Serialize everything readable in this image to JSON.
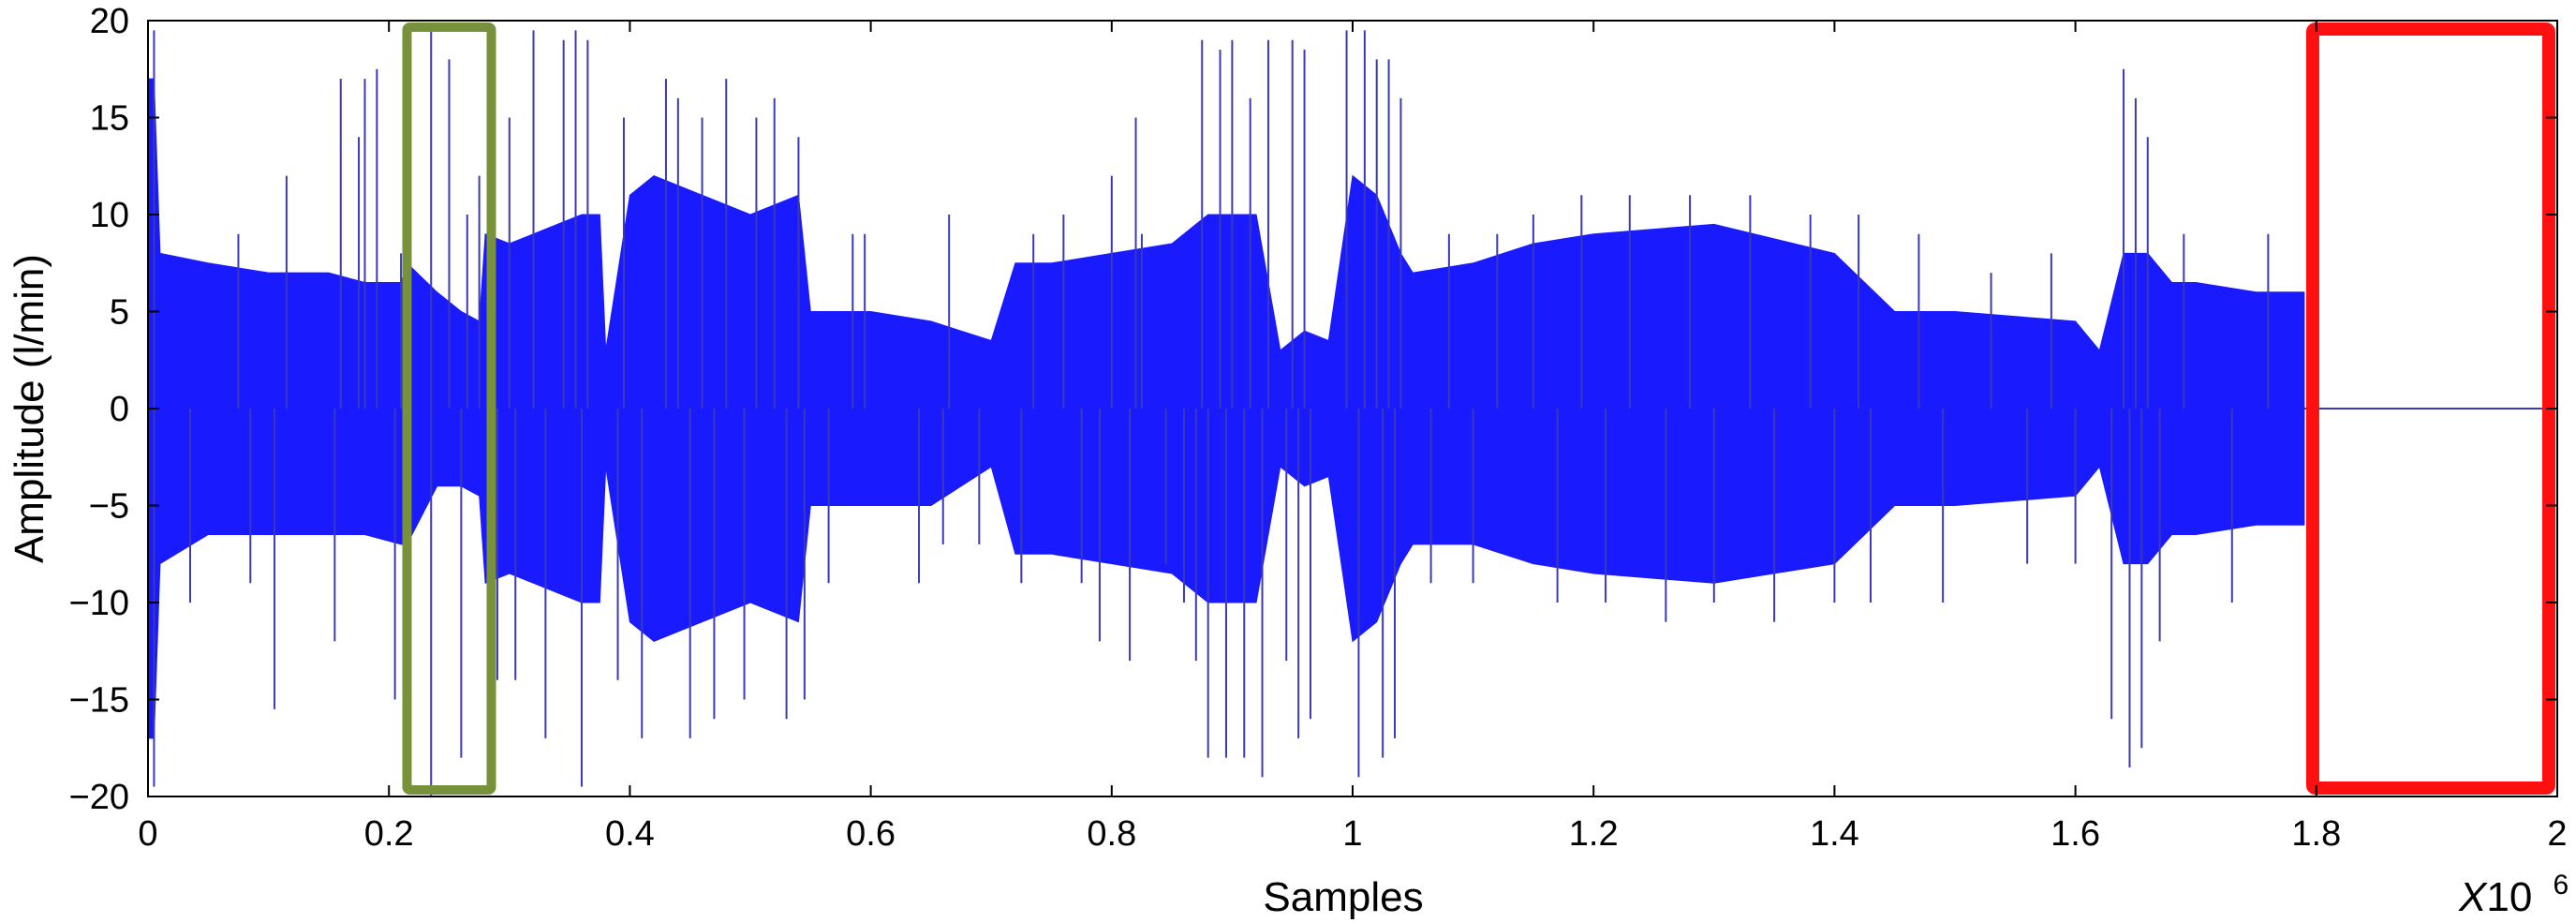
{
  "chart_data": {
    "type": "line",
    "xlabel": "Samples",
    "ylabel": "Amplitude (l/min)",
    "x_multiplier": {
      "prefix": "X10",
      "exponent": "6"
    },
    "xlim": [
      0,
      2
    ],
    "ylim": [
      -20,
      20
    ],
    "x_ticks": [
      0,
      0.2,
      0.4,
      0.6,
      0.8,
      1,
      1.2,
      1.4,
      1.6,
      1.8,
      2
    ],
    "x_tick_labels": [
      "0",
      "0.2",
      "0.4",
      "0.6",
      "0.8",
      "1",
      "1.2",
      "1.4",
      "1.6",
      "1.8",
      "2"
    ],
    "y_ticks": [
      20,
      15,
      10,
      5,
      0,
      -5,
      -10,
      -15,
      -20
    ],
    "y_tick_labels": [
      "20",
      "15",
      "10",
      "5",
      "0",
      "−5",
      "−10",
      "−15",
      "−20"
    ],
    "grid": false,
    "colors": {
      "signal": "#1a1aff",
      "signal_line": "#3a3ab8",
      "highlight_green": "#77923a",
      "highlight_red": "#ff1010"
    },
    "series": [
      {
        "envelope_x": [
          0,
          0.005,
          0.01,
          0.05,
          0.1,
          0.15,
          0.18,
          0.21,
          0.215,
          0.24,
          0.26,
          0.275,
          0.28,
          0.3,
          0.32,
          0.34,
          0.36,
          0.375,
          0.38,
          0.4,
          0.42,
          0.46,
          0.5,
          0.54,
          0.55,
          0.6,
          0.65,
          0.7,
          0.72,
          0.75,
          0.8,
          0.85,
          0.88,
          0.92,
          0.94,
          0.96,
          0.98,
          1.0,
          1.02,
          1.04,
          1.05,
          1.1,
          1.15,
          1.2,
          1.3,
          1.4,
          1.45,
          1.5,
          1.6,
          1.62,
          1.64,
          1.66,
          1.68,
          1.7,
          1.75,
          1.79
        ],
        "upper": [
          17,
          17,
          8,
          7.5,
          7,
          7,
          6.5,
          6.5,
          7.5,
          6,
          5,
          4.5,
          9,
          8.5,
          9,
          9.5,
          10,
          10,
          3,
          11,
          12,
          11,
          10,
          11,
          5,
          5,
          4.5,
          3.5,
          7.5,
          7.5,
          8,
          8.5,
          10,
          10,
          3,
          4,
          3.5,
          12,
          11,
          8,
          7,
          7.5,
          8.5,
          9,
          9.5,
          8,
          5,
          5,
          4.5,
          3,
          8,
          8,
          6.5,
          6.5,
          6,
          6
        ],
        "lower": [
          -17,
          -17,
          -8,
          -6.5,
          -6.5,
          -6.5,
          -6.5,
          -7,
          -7,
          -4,
          -4,
          -4.5,
          -9,
          -8.5,
          -9,
          -9.5,
          -10,
          -10,
          -3,
          -11,
          -12,
          -11,
          -10,
          -11,
          -5,
          -5,
          -5,
          -3,
          -7.5,
          -7.5,
          -8,
          -8.5,
          -10,
          -10,
          -3,
          -4,
          -3.5,
          -12,
          -11,
          -8,
          -7,
          -7,
          -8,
          -8.5,
          -9,
          -8,
          -5,
          -5,
          -4.5,
          -3,
          -8,
          -8,
          -6.5,
          -6.5,
          -6,
          -6
        ]
      }
    ],
    "spikes": [
      [
        0.005,
        19.5
      ],
      [
        0.005,
        -19.5
      ],
      [
        0.035,
        -10
      ],
      [
        0.075,
        9
      ],
      [
        0.085,
        -9
      ],
      [
        0.105,
        -15.5
      ],
      [
        0.115,
        12
      ],
      [
        0.155,
        -12
      ],
      [
        0.16,
        17
      ],
      [
        0.175,
        14
      ],
      [
        0.18,
        17
      ],
      [
        0.19,
        17.5
      ],
      [
        0.205,
        -15
      ],
      [
        0.21,
        8
      ],
      [
        0.215,
        9
      ],
      [
        0.235,
        19.5
      ],
      [
        0.235,
        -20
      ],
      [
        0.25,
        18
      ],
      [
        0.26,
        -18
      ],
      [
        0.265,
        10
      ],
      [
        0.275,
        12
      ],
      [
        0.29,
        -14
      ],
      [
        0.3,
        15
      ],
      [
        0.305,
        -14
      ],
      [
        0.32,
        19.5
      ],
      [
        0.33,
        -17
      ],
      [
        0.345,
        19
      ],
      [
        0.355,
        19.5
      ],
      [
        0.36,
        -19.5
      ],
      [
        0.365,
        19
      ],
      [
        0.39,
        -14
      ],
      [
        0.395,
        15
      ],
      [
        0.41,
        -17
      ],
      [
        0.43,
        17
      ],
      [
        0.44,
        16
      ],
      [
        0.45,
        -17
      ],
      [
        0.46,
        15
      ],
      [
        0.47,
        -16
      ],
      [
        0.48,
        17
      ],
      [
        0.495,
        -15
      ],
      [
        0.505,
        15
      ],
      [
        0.52,
        16
      ],
      [
        0.53,
        -16
      ],
      [
        0.54,
        14
      ],
      [
        0.545,
        -15
      ],
      [
        0.565,
        -9
      ],
      [
        0.585,
        9
      ],
      [
        0.595,
        9
      ],
      [
        0.64,
        -9
      ],
      [
        0.66,
        -7
      ],
      [
        0.665,
        10
      ],
      [
        0.69,
        -7
      ],
      [
        0.725,
        -9
      ],
      [
        0.735,
        9
      ],
      [
        0.76,
        10
      ],
      [
        0.775,
        -9
      ],
      [
        0.79,
        -12
      ],
      [
        0.8,
        12
      ],
      [
        0.815,
        -13
      ],
      [
        0.82,
        15
      ],
      [
        0.825,
        9
      ],
      [
        0.845,
        -8
      ],
      [
        0.86,
        -10
      ],
      [
        0.87,
        -13
      ],
      [
        0.875,
        19
      ],
      [
        0.88,
        -18
      ],
      [
        0.89,
        18.5
      ],
      [
        0.895,
        -18
      ],
      [
        0.9,
        19
      ],
      [
        0.91,
        -18
      ],
      [
        0.915,
        16
      ],
      [
        0.925,
        -19
      ],
      [
        0.93,
        19
      ],
      [
        0.945,
        -13
      ],
      [
        0.95,
        19
      ],
      [
        0.955,
        -17
      ],
      [
        0.96,
        18.5
      ],
      [
        0.965,
        -16
      ],
      [
        0.995,
        19.5
      ],
      [
        1.005,
        -19
      ],
      [
        1.01,
        19.5
      ],
      [
        1.02,
        18
      ],
      [
        1.025,
        -18
      ],
      [
        1.03,
        18
      ],
      [
        1.035,
        -17
      ],
      [
        1.04,
        16
      ],
      [
        1.065,
        -9
      ],
      [
        1.08,
        9
      ],
      [
        1.1,
        -9
      ],
      [
        1.12,
        9
      ],
      [
        1.15,
        10
      ],
      [
        1.17,
        -10
      ],
      [
        1.19,
        11
      ],
      [
        1.21,
        -10
      ],
      [
        1.23,
        11
      ],
      [
        1.26,
        -11
      ],
      [
        1.28,
        11
      ],
      [
        1.3,
        -10
      ],
      [
        1.33,
        11
      ],
      [
        1.35,
        -11
      ],
      [
        1.38,
        10
      ],
      [
        1.4,
        -10
      ],
      [
        1.42,
        10
      ],
      [
        1.43,
        -10
      ],
      [
        1.47,
        9
      ],
      [
        1.49,
        -10
      ],
      [
        1.53,
        7
      ],
      [
        1.56,
        -8
      ],
      [
        1.58,
        8
      ],
      [
        1.6,
        -8
      ],
      [
        1.63,
        -16
      ],
      [
        1.64,
        17.5
      ],
      [
        1.645,
        -18.5
      ],
      [
        1.65,
        16
      ],
      [
        1.655,
        -17.5
      ],
      [
        1.66,
        14
      ],
      [
        1.67,
        -12
      ],
      [
        1.69,
        9
      ],
      [
        1.73,
        -10
      ],
      [
        1.76,
        9
      ]
    ],
    "flat_segment": {
      "x": [
        1.79,
        2.0
      ],
      "y": 0
    },
    "highlight_boxes": [
      {
        "label_color": "highlight_green",
        "x": [
          0.215,
          0.285
        ],
        "y": [
          -20,
          20
        ]
      },
      {
        "label_color": "highlight_red",
        "x": [
          1.79,
          2.0
        ],
        "y": [
          -20,
          20
        ]
      }
    ]
  }
}
